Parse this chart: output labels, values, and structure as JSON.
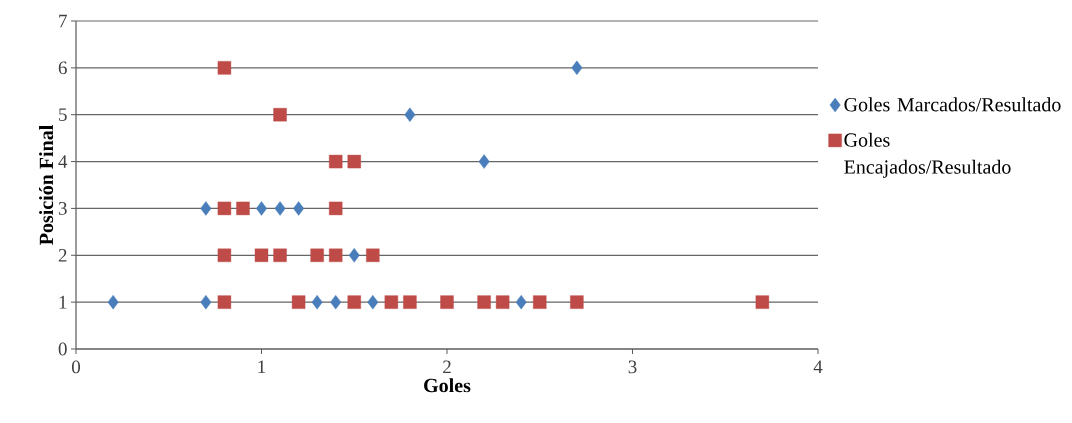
{
  "chart_data": {
    "type": "scatter",
    "xlabel": "Goles",
    "ylabel": "Posición Final",
    "xlim": [
      0,
      4
    ],
    "ylim": [
      0,
      7
    ],
    "xticks": [
      0,
      1,
      2,
      3,
      4
    ],
    "yticks": [
      0,
      1,
      2,
      3,
      4,
      5,
      6,
      7
    ],
    "grid": "y",
    "legend": "right",
    "series": [
      {
        "name": "Goles Marcados/Resultado",
        "color": "#4a7ebb",
        "marker": "diamond",
        "x": [
          0.2,
          0.7,
          1.3,
          1.4,
          1.6,
          2.4,
          1.5,
          0.7,
          1.0,
          1.1,
          1.2,
          2.2,
          1.8,
          2.7
        ],
        "values": [
          1,
          1,
          1,
          1,
          1,
          1,
          2,
          3,
          3,
          3,
          3,
          4,
          5,
          6
        ]
      },
      {
        "name": "Goles Encajados/Resultado",
        "color": "#be4b48",
        "marker": "square",
        "x": [
          0.8,
          1.2,
          1.5,
          1.7,
          1.8,
          2.0,
          2.2,
          2.3,
          2.5,
          2.7,
          3.7,
          0.8,
          1.0,
          1.1,
          1.3,
          1.4,
          1.6,
          0.8,
          0.9,
          1.4,
          1.4,
          1.5,
          1.1,
          0.8
        ],
        "values": [
          1,
          1,
          1,
          1,
          1,
          1,
          1,
          1,
          1,
          1,
          1,
          2,
          2,
          2,
          2,
          2,
          2,
          3,
          3,
          3,
          4,
          4,
          5,
          6
        ]
      }
    ]
  }
}
